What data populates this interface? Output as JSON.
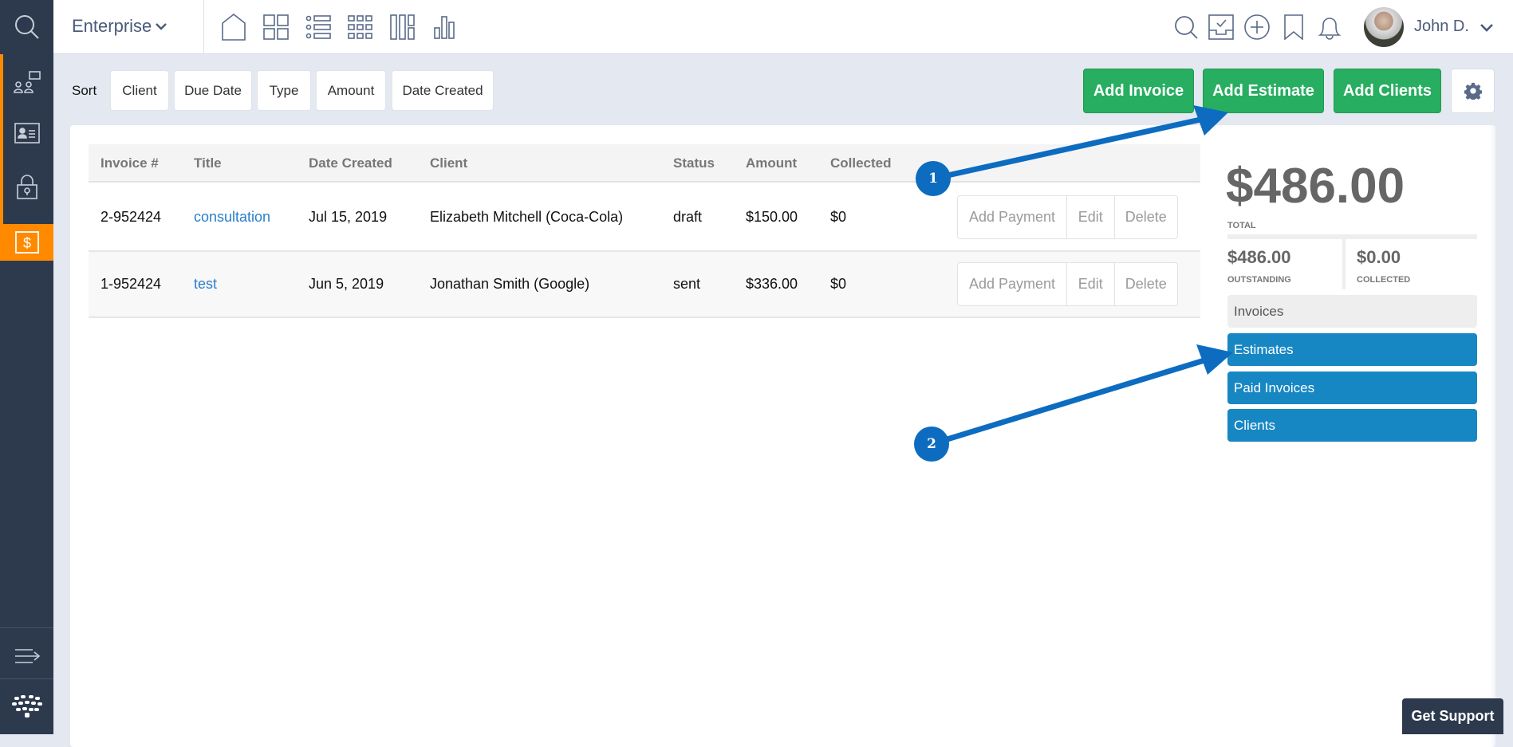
{
  "topbar": {
    "workspace": "Enterprise",
    "user_name": "John D."
  },
  "sort": {
    "label": "Sort",
    "options": [
      "Client",
      "Due Date",
      "Type",
      "Amount",
      "Date Created"
    ]
  },
  "actions": {
    "add_invoice": "Add Invoice",
    "add_estimate": "Add Estimate",
    "add_clients": "Add Clients"
  },
  "table": {
    "headers": [
      "Invoice #",
      "Title",
      "Date Created",
      "Client",
      "Status",
      "Amount",
      "Collected"
    ],
    "rows": [
      {
        "invoice": "2-952424",
        "title": "consultation",
        "date": "Jul 15, 2019",
        "client": "Elizabeth Mitchell (Coca-Cola)",
        "status": "draft",
        "amount": "$150.00",
        "collected": "$0"
      },
      {
        "invoice": "1-952424",
        "title": "test",
        "date": "Jun 5, 2019",
        "client": "Jonathan Smith (Google)",
        "status": "sent",
        "amount": "$336.00",
        "collected": "$0"
      }
    ],
    "row_actions": [
      "Add Payment",
      "Edit",
      "Delete"
    ]
  },
  "summary": {
    "total": "$486.00",
    "total_label": "TOTAL",
    "outstanding": "$486.00",
    "outstanding_label": "OUTSTANDING",
    "collected": "$0.00",
    "collected_label": "COLLECTED"
  },
  "nav": [
    "Invoices",
    "Estimates",
    "Paid Invoices",
    "Clients"
  ],
  "annotations": [
    "1",
    "2"
  ],
  "support": "Get Support",
  "colors": {
    "sidebar": "#2d3a4e",
    "accent": "#ff8a00",
    "green": "#27ae60",
    "blue": "#1787c3",
    "annotation": "#0d6cc0"
  }
}
